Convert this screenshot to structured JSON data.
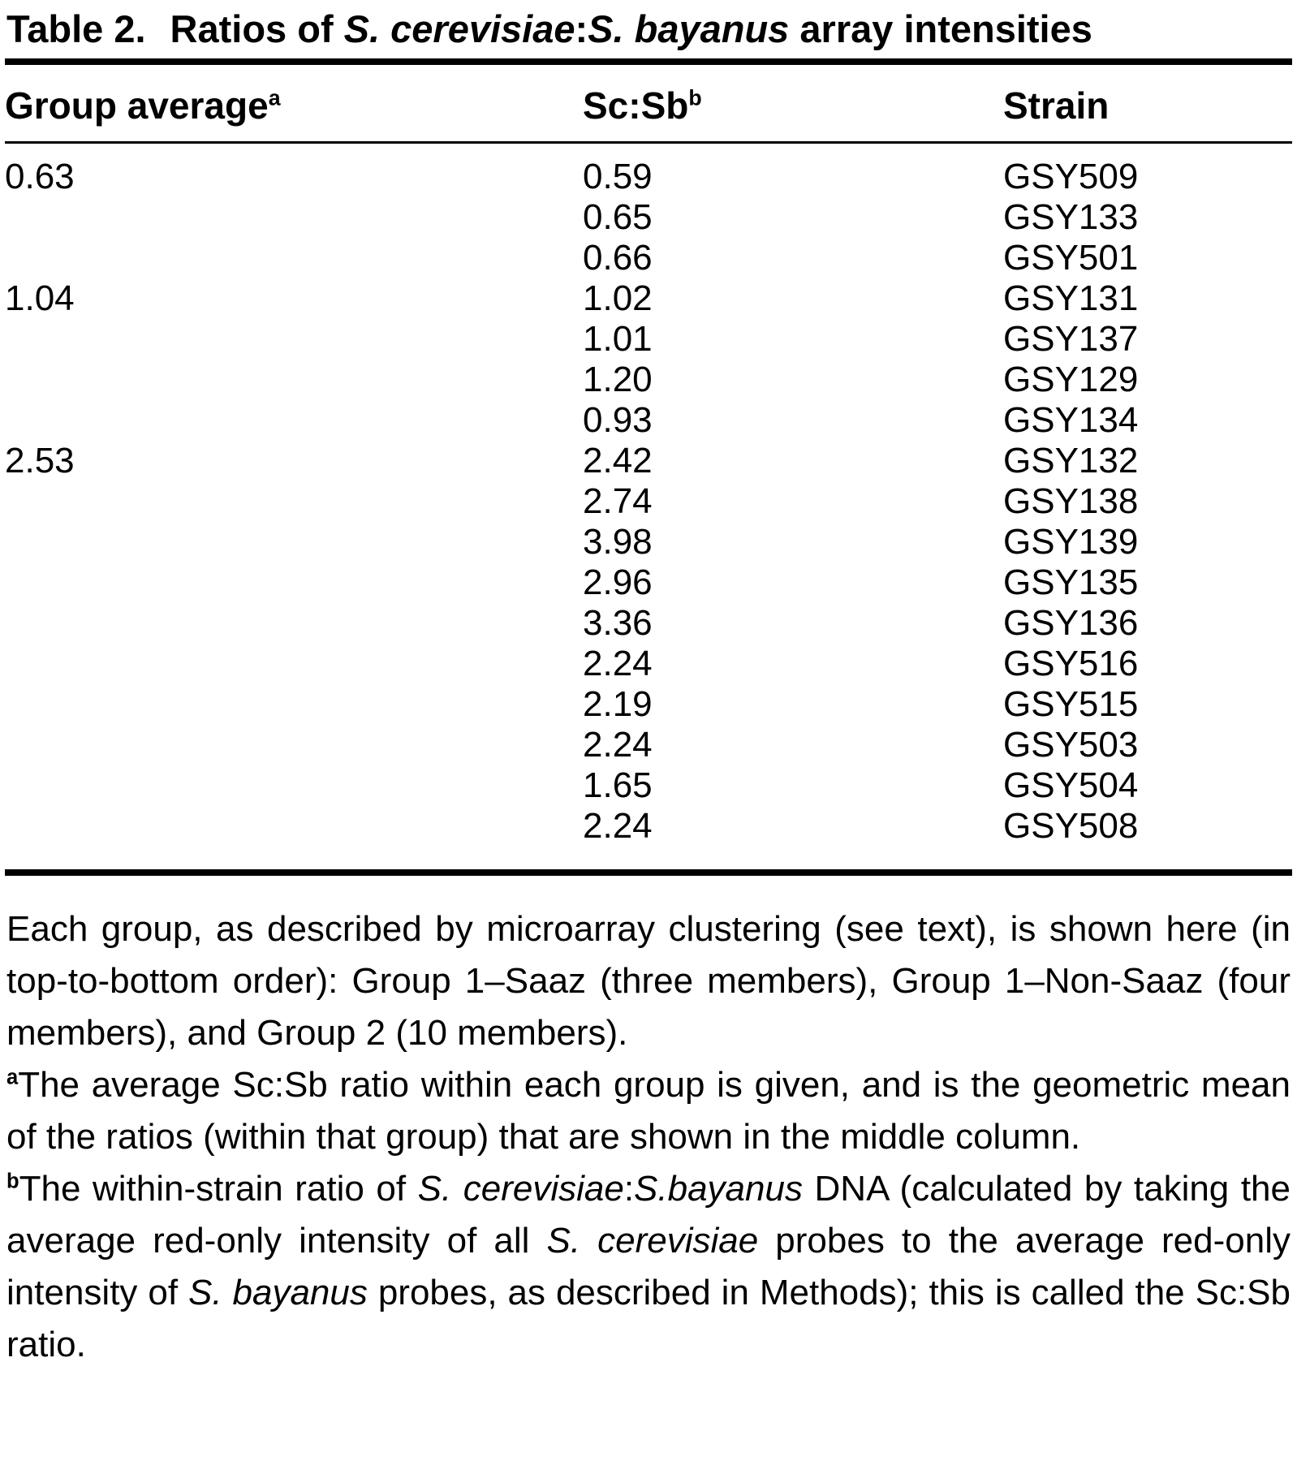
{
  "colors": {
    "text": "#000000",
    "background": "#ffffff",
    "rule": "#000000"
  },
  "title": {
    "label": "Table 2.",
    "segments": [
      {
        "t": "Ratios of "
      },
      {
        "t": "S. cerevisiae",
        "i": true
      },
      {
        "t": ":"
      },
      {
        "t": "S. bayanus",
        "i": true
      },
      {
        "t": " array intensities"
      }
    ]
  },
  "table": {
    "headers": [
      {
        "label": "Group average",
        "sup": "a"
      },
      {
        "label": "Sc:Sb",
        "sup": "b"
      },
      {
        "label": "Strain",
        "sup": ""
      }
    ],
    "rows": [
      {
        "avg": "0.63",
        "ratio": "0.59",
        "strain": "GSY509"
      },
      {
        "avg": "",
        "ratio": "0.65",
        "strain": "GSY133"
      },
      {
        "avg": "",
        "ratio": "0.66",
        "strain": "GSY501"
      },
      {
        "avg": "1.04",
        "ratio": "1.02",
        "strain": "GSY131"
      },
      {
        "avg": "",
        "ratio": "1.01",
        "strain": "GSY137"
      },
      {
        "avg": "",
        "ratio": "1.20",
        "strain": "GSY129"
      },
      {
        "avg": "",
        "ratio": "0.93",
        "strain": "GSY134"
      },
      {
        "avg": "2.53",
        "ratio": "2.42",
        "strain": "GSY132"
      },
      {
        "avg": "",
        "ratio": "2.74",
        "strain": "GSY138"
      },
      {
        "avg": "",
        "ratio": "3.98",
        "strain": "GSY139"
      },
      {
        "avg": "",
        "ratio": "2.96",
        "strain": "GSY135"
      },
      {
        "avg": "",
        "ratio": "3.36",
        "strain": "GSY136"
      },
      {
        "avg": "",
        "ratio": "2.24",
        "strain": "GSY516"
      },
      {
        "avg": "",
        "ratio": "2.19",
        "strain": "GSY515"
      },
      {
        "avg": "",
        "ratio": "2.24",
        "strain": "GSY503"
      },
      {
        "avg": "",
        "ratio": "1.65",
        "strain": "GSY504"
      },
      {
        "avg": "",
        "ratio": "2.24",
        "strain": "GSY508"
      }
    ]
  },
  "footnotes": {
    "general": {
      "segments": [
        {
          "t": "Each group, as described by microarray clustering (see text), is shown here (in top-to-bottom order): Group 1–Saaz (three members), Group 1–Non-Saaz (four members), and Group 2 (10 members)."
        }
      ]
    },
    "a": {
      "marker": "a",
      "segments": [
        {
          "t": "The average Sc:Sb ratio within each group is given, and is the geometric mean of the ratios (within that group) that are shown in the middle column."
        }
      ]
    },
    "b": {
      "marker": "b",
      "segments": [
        {
          "t": "The within-strain ratio of "
        },
        {
          "t": "S. cerevisiae",
          "i": true
        },
        {
          "t": ":"
        },
        {
          "t": "S.bayanus",
          "i": true
        },
        {
          "t": " DNA (calculated by taking the average red-only intensity of all "
        },
        {
          "t": "S. cerevisiae",
          "i": true
        },
        {
          "t": " probes to the average red-only intensity of "
        },
        {
          "t": "S. bayanus",
          "i": true
        },
        {
          "t": " probes, as described in Methods); this is called the Sc:Sb ratio."
        }
      ]
    }
  }
}
